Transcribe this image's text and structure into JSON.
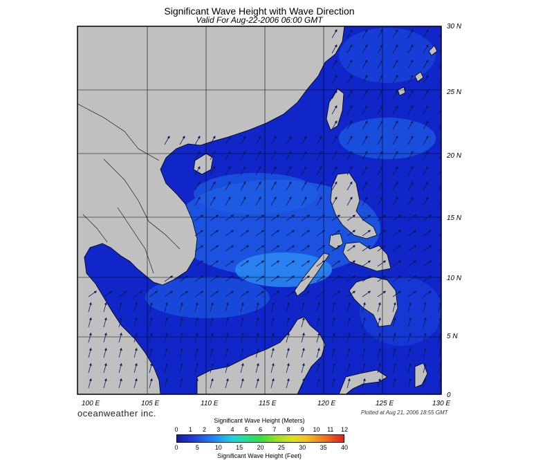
{
  "header": {
    "title": "Significant Wave Height with Wave Direction",
    "subtitle": "Valid For Aug-22-2006 06:00 GMT"
  },
  "map": {
    "lat_labels": [
      "30 N",
      "25 N",
      "20 N",
      "15 N",
      "10 N",
      "5 N",
      "0"
    ],
    "lon_labels": [
      "100 E",
      "105 E",
      "110 E",
      "115 E",
      "120 E",
      "125 E",
      "130 E"
    ],
    "colors": {
      "land": "#c0c0c0",
      "sea_dark": "#1026c8",
      "sea_mid": "#1e5fe6",
      "sea_light": "#2a86f0",
      "sea_deep": "#0a0a78",
      "arrow": "#0d1a5a",
      "grid": "#000000"
    }
  },
  "footer": {
    "brand": "oceanweather inc.",
    "plotted": "Plotted at Aug 21, 2006 18:55 GMT"
  },
  "colorbar": {
    "title_top": "Significant Wave Height (Meters)",
    "title_bottom": "Significant Wave Height (Feet)",
    "meters": [
      "0",
      "1",
      "2",
      "3",
      "4",
      "5",
      "6",
      "7",
      "8",
      "9",
      "10",
      "11",
      "12"
    ],
    "feet": [
      "0",
      "5",
      "10",
      "15",
      "20",
      "25",
      "30",
      "35",
      "40"
    ]
  }
}
